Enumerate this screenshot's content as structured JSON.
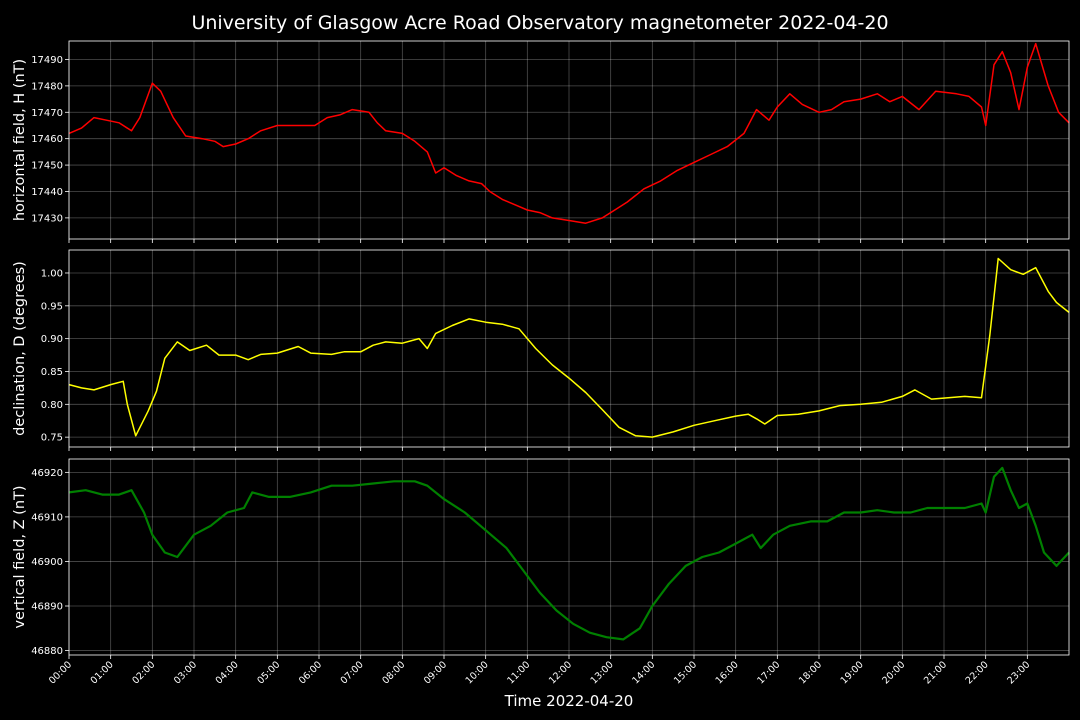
{
  "chart_data": {
    "type": "line",
    "title": "University of Glasgow Acre Road Observatory magnetometer 2022-04-20",
    "xlabel": "Time 2022-04-20",
    "x_tick_labels": [
      "00:00",
      "01:00",
      "02:00",
      "03:00",
      "04:00",
      "05:00",
      "06:00",
      "07:00",
      "08:00",
      "09:00",
      "10:00",
      "11:00",
      "12:00",
      "13:00",
      "14:00",
      "15:00",
      "16:00",
      "17:00",
      "18:00",
      "19:00",
      "20:00",
      "21:00",
      "22:00",
      "23:00"
    ],
    "xlim_hours": [
      0,
      24
    ],
    "grid": true,
    "background": "#000000",
    "panels": [
      {
        "name": "horizontal",
        "ylabel": "horizontal field, H (nT)",
        "color": "#ff0000",
        "ylim": [
          17422,
          17497
        ],
        "yticks": [
          17430,
          17440,
          17450,
          17460,
          17470,
          17480,
          17490
        ],
        "tick_format": 0,
        "points": [
          [
            0,
            17462
          ],
          [
            0.3,
            17464
          ],
          [
            0.6,
            17468
          ],
          [
            0.9,
            17467
          ],
          [
            1.2,
            17466
          ],
          [
            1.5,
            17463
          ],
          [
            1.7,
            17468
          ],
          [
            2.0,
            17481
          ],
          [
            2.2,
            17478
          ],
          [
            2.5,
            17468
          ],
          [
            2.8,
            17461
          ],
          [
            3.2,
            17460
          ],
          [
            3.5,
            17459
          ],
          [
            3.7,
            17457
          ],
          [
            4.0,
            17458
          ],
          [
            4.3,
            17460
          ],
          [
            4.6,
            17463
          ],
          [
            5.0,
            17465
          ],
          [
            5.5,
            17465
          ],
          [
            5.9,
            17465
          ],
          [
            6.2,
            17468
          ],
          [
            6.5,
            17469
          ],
          [
            6.8,
            17471
          ],
          [
            7.2,
            17470
          ],
          [
            7.4,
            17466
          ],
          [
            7.6,
            17463
          ],
          [
            8.0,
            17462
          ],
          [
            8.3,
            17459
          ],
          [
            8.6,
            17455
          ],
          [
            8.8,
            17447
          ],
          [
            9.0,
            17449
          ],
          [
            9.3,
            17446
          ],
          [
            9.6,
            17444
          ],
          [
            9.9,
            17443
          ],
          [
            10.1,
            17440
          ],
          [
            10.4,
            17437
          ],
          [
            10.7,
            17435
          ],
          [
            11.0,
            17433
          ],
          [
            11.3,
            17432
          ],
          [
            11.6,
            17430
          ],
          [
            12.0,
            17429
          ],
          [
            12.4,
            17428
          ],
          [
            12.8,
            17430
          ],
          [
            13.1,
            17433
          ],
          [
            13.4,
            17436
          ],
          [
            13.8,
            17441
          ],
          [
            14.2,
            17444
          ],
          [
            14.6,
            17448
          ],
          [
            15.0,
            17451
          ],
          [
            15.4,
            17454
          ],
          [
            15.8,
            17457
          ],
          [
            16.2,
            17462
          ],
          [
            16.5,
            17471
          ],
          [
            16.8,
            17467
          ],
          [
            17.0,
            17472
          ],
          [
            17.3,
            17477
          ],
          [
            17.6,
            17473
          ],
          [
            18.0,
            17470
          ],
          [
            18.3,
            17471
          ],
          [
            18.6,
            17474
          ],
          [
            19.0,
            17475
          ],
          [
            19.4,
            17477
          ],
          [
            19.7,
            17474
          ],
          [
            20.0,
            17476
          ],
          [
            20.4,
            17471
          ],
          [
            20.8,
            17478
          ],
          [
            21.3,
            17477
          ],
          [
            21.6,
            17476
          ],
          [
            21.9,
            17472
          ],
          [
            22.0,
            17465
          ],
          [
            22.2,
            17488
          ],
          [
            22.4,
            17493
          ],
          [
            22.6,
            17485
          ],
          [
            22.8,
            17471
          ],
          [
            23.0,
            17487
          ],
          [
            23.2,
            17496
          ],
          [
            23.5,
            17480
          ],
          [
            23.75,
            17470
          ],
          [
            24.0,
            17466
          ]
        ]
      },
      {
        "name": "declination",
        "ylabel": "declination, D (degrees)",
        "color": "#ffff00",
        "ylim": [
          0.735,
          1.035
        ],
        "yticks": [
          0.75,
          0.8,
          0.85,
          0.9,
          0.95,
          1.0
        ],
        "tick_format": 2,
        "points": [
          [
            0,
            0.83
          ],
          [
            0.3,
            0.825
          ],
          [
            0.6,
            0.822
          ],
          [
            1.0,
            0.83
          ],
          [
            1.3,
            0.835
          ],
          [
            1.4,
            0.8
          ],
          [
            1.6,
            0.752
          ],
          [
            1.9,
            0.79
          ],
          [
            2.1,
            0.82
          ],
          [
            2.3,
            0.87
          ],
          [
            2.6,
            0.895
          ],
          [
            2.9,
            0.882
          ],
          [
            3.3,
            0.89
          ],
          [
            3.6,
            0.875
          ],
          [
            4.0,
            0.875
          ],
          [
            4.3,
            0.868
          ],
          [
            4.6,
            0.876
          ],
          [
            5.0,
            0.878
          ],
          [
            5.5,
            0.888
          ],
          [
            5.8,
            0.878
          ],
          [
            6.3,
            0.876
          ],
          [
            6.6,
            0.88
          ],
          [
            7.0,
            0.88
          ],
          [
            7.3,
            0.89
          ],
          [
            7.6,
            0.895
          ],
          [
            8.0,
            0.893
          ],
          [
            8.4,
            0.9
          ],
          [
            8.6,
            0.885
          ],
          [
            8.8,
            0.908
          ],
          [
            9.2,
            0.92
          ],
          [
            9.6,
            0.93
          ],
          [
            10.0,
            0.925
          ],
          [
            10.4,
            0.922
          ],
          [
            10.8,
            0.915
          ],
          [
            11.2,
            0.885
          ],
          [
            11.6,
            0.86
          ],
          [
            12.0,
            0.84
          ],
          [
            12.4,
            0.818
          ],
          [
            12.8,
            0.792
          ],
          [
            13.2,
            0.765
          ],
          [
            13.6,
            0.752
          ],
          [
            14.0,
            0.75
          ],
          [
            14.5,
            0.758
          ],
          [
            15.0,
            0.768
          ],
          [
            15.5,
            0.775
          ],
          [
            16.0,
            0.782
          ],
          [
            16.3,
            0.785
          ],
          [
            16.5,
            0.778
          ],
          [
            16.7,
            0.77
          ],
          [
            17.0,
            0.783
          ],
          [
            17.5,
            0.785
          ],
          [
            18.0,
            0.79
          ],
          [
            18.5,
            0.798
          ],
          [
            19.0,
            0.8
          ],
          [
            19.5,
            0.803
          ],
          [
            20.0,
            0.812
          ],
          [
            20.3,
            0.822
          ],
          [
            20.7,
            0.808
          ],
          [
            21.1,
            0.81
          ],
          [
            21.5,
            0.812
          ],
          [
            21.9,
            0.81
          ],
          [
            22.1,
            0.905
          ],
          [
            22.3,
            1.022
          ],
          [
            22.6,
            1.005
          ],
          [
            22.9,
            0.998
          ],
          [
            23.2,
            1.008
          ],
          [
            23.5,
            0.972
          ],
          [
            23.7,
            0.955
          ],
          [
            24.0,
            0.94
          ]
        ]
      },
      {
        "name": "vertical",
        "ylabel": "vertical field, Z (nT)",
        "color": "#008000",
        "ylim": [
          46879,
          46923
        ],
        "yticks": [
          46880,
          46890,
          46900,
          46910,
          46920
        ],
        "tick_format": 0,
        "points": [
          [
            0,
            46915.5
          ],
          [
            0.4,
            46916
          ],
          [
            0.8,
            46915
          ],
          [
            1.2,
            46915
          ],
          [
            1.5,
            46916
          ],
          [
            1.8,
            46911
          ],
          [
            2.0,
            46906
          ],
          [
            2.3,
            46902
          ],
          [
            2.6,
            46901
          ],
          [
            3.0,
            46906
          ],
          [
            3.4,
            46908
          ],
          [
            3.8,
            46911
          ],
          [
            4.2,
            46912
          ],
          [
            4.4,
            46915.5
          ],
          [
            4.8,
            46914.5
          ],
          [
            5.3,
            46914.5
          ],
          [
            5.8,
            46915.5
          ],
          [
            6.3,
            46917
          ],
          [
            6.8,
            46917
          ],
          [
            7.3,
            46917.5
          ],
          [
            7.8,
            46918
          ],
          [
            8.3,
            46918
          ],
          [
            8.6,
            46917
          ],
          [
            9.0,
            46914
          ],
          [
            9.5,
            46911
          ],
          [
            10.0,
            46907
          ],
          [
            10.5,
            46903
          ],
          [
            10.9,
            46898
          ],
          [
            11.3,
            46893
          ],
          [
            11.7,
            46889
          ],
          [
            12.1,
            46886
          ],
          [
            12.5,
            46884
          ],
          [
            12.9,
            46883
          ],
          [
            13.3,
            46882.5
          ],
          [
            13.7,
            46885
          ],
          [
            14.0,
            46890
          ],
          [
            14.4,
            46895
          ],
          [
            14.8,
            46899
          ],
          [
            15.2,
            46901
          ],
          [
            15.6,
            46902
          ],
          [
            16.0,
            46904
          ],
          [
            16.4,
            46906
          ],
          [
            16.6,
            46903
          ],
          [
            16.9,
            46906
          ],
          [
            17.3,
            46908
          ],
          [
            17.8,
            46909
          ],
          [
            18.2,
            46909
          ],
          [
            18.6,
            46911
          ],
          [
            19.0,
            46911
          ],
          [
            19.4,
            46911.5
          ],
          [
            19.8,
            46911
          ],
          [
            20.2,
            46911
          ],
          [
            20.6,
            46912
          ],
          [
            21.0,
            46912
          ],
          [
            21.5,
            46912
          ],
          [
            21.9,
            46913
          ],
          [
            22.0,
            46911
          ],
          [
            22.2,
            46919
          ],
          [
            22.4,
            46921
          ],
          [
            22.6,
            46916
          ],
          [
            22.8,
            46912
          ],
          [
            23.0,
            46913
          ],
          [
            23.2,
            46908
          ],
          [
            23.4,
            46902
          ],
          [
            23.7,
            46899
          ],
          [
            23.9,
            46901
          ],
          [
            24.0,
            46902
          ]
        ]
      }
    ]
  }
}
